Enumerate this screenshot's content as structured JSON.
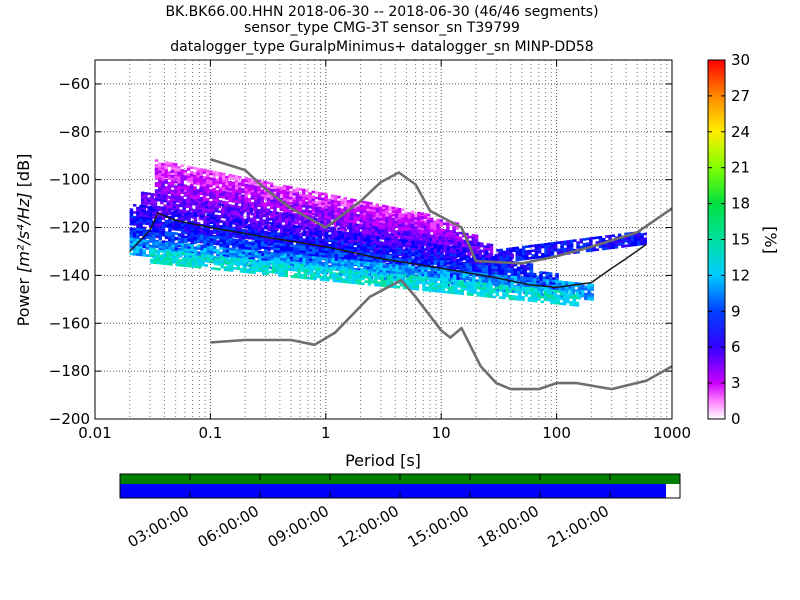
{
  "title": {
    "line1": "BK.BK66.00.HHN   2018-06-30 -- 2018-06-30  (46/46 segments)",
    "line2": "sensor_type CMG-3T sensor_sn T39799",
    "line3": "datalogger_type GuralpMinimus+ datalogger_sn MINP-DD58"
  },
  "chart_data": [
    {
      "type": "heatmap",
      "name": "ppsd-histogram",
      "xlabel": "Period [s]",
      "ylabel_prefix": "Power ",
      "ylabel_units": "[m²/s⁴/Hz]",
      "ylabel_suffix": " [dB]",
      "x_scale": "log",
      "xlim": [
        0.01,
        1000
      ],
      "ylim": [
        -200,
        -50
      ],
      "xticks": [
        0.01,
        0.1,
        1,
        10,
        100,
        1000
      ],
      "xtick_labels": [
        "0.01",
        "0.1",
        "1",
        "10",
        "100",
        "1000"
      ],
      "yticks": [
        -200,
        -180,
        -160,
        -140,
        -120,
        -100,
        -80,
        -60
      ],
      "ytick_labels": [
        "−200",
        "−180",
        "−160",
        "−140",
        "−120",
        "−100",
        "−80",
        "−60"
      ],
      "colorbar": {
        "label": "[%]",
        "range": [
          0,
          30
        ],
        "ticks": [
          0,
          3,
          6,
          9,
          12,
          15,
          18,
          21,
          24,
          27,
          30
        ],
        "tick_labels": [
          "0",
          "3",
          "6",
          "9",
          "12",
          "15",
          "18",
          "21",
          "24",
          "27",
          "30"
        ]
      },
      "density_bands": [
        {
          "period": [
            0.033,
            8
          ],
          "db_start": -95,
          "db_end": -118,
          "width": 3.5,
          "level": 2
        },
        {
          "period": [
            0.033,
            14
          ],
          "db_start": -99,
          "db_end": -122,
          "width": 4,
          "level": 3
        },
        {
          "period": [
            0.033,
            20
          ],
          "db_start": -104,
          "db_end": -127,
          "width": 4,
          "level": 4
        },
        {
          "period": [
            0.025,
            28
          ],
          "db_start": -109,
          "db_end": -131,
          "width": 4,
          "level": 5
        },
        {
          "period": [
            0.02,
            40
          ],
          "db_start": -114,
          "db_end": -135,
          "width": 4,
          "level": 6
        },
        {
          "period": [
            0.02,
            60
          ],
          "db_start": -119,
          "db_end": -139,
          "width": 4,
          "level": 7
        },
        {
          "period": [
            0.02,
            100
          ],
          "db_start": -124,
          "db_end": -143,
          "width": 4,
          "level": 8
        },
        {
          "period": [
            0.02,
            200
          ],
          "db_start": -128,
          "db_end": -147,
          "width": 3.5,
          "level": 10
        },
        {
          "period": [
            0.03,
            150
          ],
          "db_start": -132,
          "db_end": -150,
          "width": 3,
          "level": 12
        },
        {
          "period": [
            30,
            600
          ],
          "db_start": -132,
          "db_end": -124,
          "width": 3,
          "level": 7
        }
      ],
      "series": [
        {
          "name": "",
          "color": "#1a1a1a",
          "points": [
            [
              0.02,
              -130
            ],
            [
              0.03,
              -121
            ],
            [
              0.035,
              -114
            ],
            [
              0.05,
              -117
            ],
            [
              0.1,
              -120
            ],
            [
              0.3,
              -124
            ],
            [
              1,
              -128
            ],
            [
              3,
              -133
            ],
            [
              10,
              -137
            ],
            [
              30,
              -141
            ],
            [
              60,
              -144
            ],
            [
              100,
              -145
            ],
            [
              200,
              -143
            ],
            [
              300,
              -137
            ],
            [
              400,
              -133
            ],
            [
              600,
              -127
            ]
          ]
        },
        {
          "name": "",
          "color": "#6e6e6e",
          "points": [
            [
              0.1,
              -91.5
            ],
            [
              0.2,
              -96
            ],
            [
              0.3,
              -104
            ],
            [
              0.5,
              -112
            ],
            [
              1,
              -120
            ],
            [
              2,
              -109
            ],
            [
              3,
              -101
            ],
            [
              4.3,
              -97
            ],
            [
              6,
              -102
            ],
            [
              8,
              -113
            ],
            [
              15,
              -120
            ],
            [
              20,
              -134
            ],
            [
              50,
              -135
            ],
            [
              100,
              -132
            ],
            [
              200,
              -128
            ],
            [
              500,
              -122
            ],
            [
              1000,
              -112
            ]
          ]
        },
        {
          "name": "",
          "color": "#6e6e6e",
          "points": [
            [
              0.1,
              -168
            ],
            [
              0.2,
              -167
            ],
            [
              0.5,
              -167
            ],
            [
              0.8,
              -169
            ],
            [
              1.2,
              -164
            ],
            [
              2.4,
              -149
            ],
            [
              4.5,
              -142
            ],
            [
              6,
              -149
            ],
            [
              10,
              -163
            ],
            [
              12,
              -166
            ],
            [
              15,
              -162
            ],
            [
              22,
              -178
            ],
            [
              30,
              -185
            ],
            [
              40,
              -187.5
            ],
            [
              70,
              -187.5
            ],
            [
              100,
              -185
            ],
            [
              150,
              -185
            ],
            [
              300,
              -187.5
            ],
            [
              600,
              -184
            ],
            [
              1000,
              -178
            ]
          ]
        }
      ]
    },
    {
      "type": "bar",
      "name": "data-coverage",
      "xtick_labels": [
        "03:00:00",
        "06:00:00",
        "09:00:00",
        "12:00:00",
        "15:00:00",
        "18:00:00",
        "21:00:00"
      ],
      "xtick_hours": [
        3,
        6,
        9,
        12,
        15,
        18,
        21
      ],
      "x_range_hours": [
        0,
        24
      ],
      "series": [
        {
          "name": "",
          "color": "#008000",
          "start_hour": 0,
          "end_hour": 24
        },
        {
          "name": "",
          "color": "#0000ff",
          "start_hour": 0,
          "end_hour": 23.4
        }
      ]
    }
  ]
}
